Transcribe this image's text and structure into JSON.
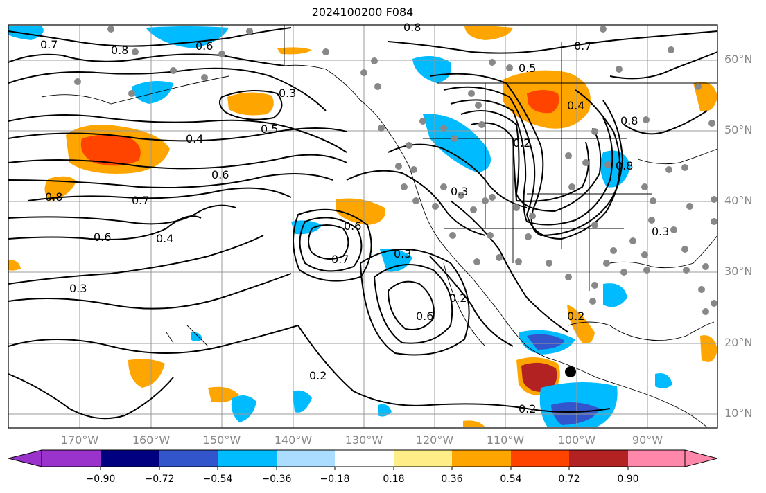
{
  "title": "2024100200 F084",
  "lat_labels": [
    "60°N",
    "50°N",
    "40°N",
    "30°N",
    "20°N",
    "10°N"
  ],
  "lon_labels": [
    "170°W",
    "160°W",
    "150°W",
    "140°W",
    "130°W",
    "120°W",
    "110°W",
    "100°W",
    "90°W"
  ],
  "colorbar": {
    "ticks": [
      "−0.90",
      "−0.72",
      "−0.54",
      "−0.36",
      "−0.18",
      "0.18",
      "0.36",
      "0.54",
      "0.72",
      "0.90"
    ],
    "colors": [
      "#9933cc",
      "#000080",
      "#3355cc",
      "#00bbff",
      "#aaddff",
      "#ffffff",
      "#ffee88",
      "#ffa500",
      "#ff4400",
      "#b22222",
      "#ff88aa"
    ]
  },
  "contour_labels": [
    "0.7",
    "0.8",
    "0.6",
    "0.8",
    "0.3",
    "0.4",
    "0.5",
    "0.6",
    "0.7",
    "0.8",
    "0.6",
    "0.4",
    "0.3",
    "0.6",
    "0.7",
    "0.3",
    "0.2",
    "0.6",
    "0.2",
    "0.5",
    "0.7",
    "0.4",
    "0.2",
    "0.3",
    "0.8",
    "0.8",
    "0.3",
    "0.2",
    "0.2"
  ]
}
